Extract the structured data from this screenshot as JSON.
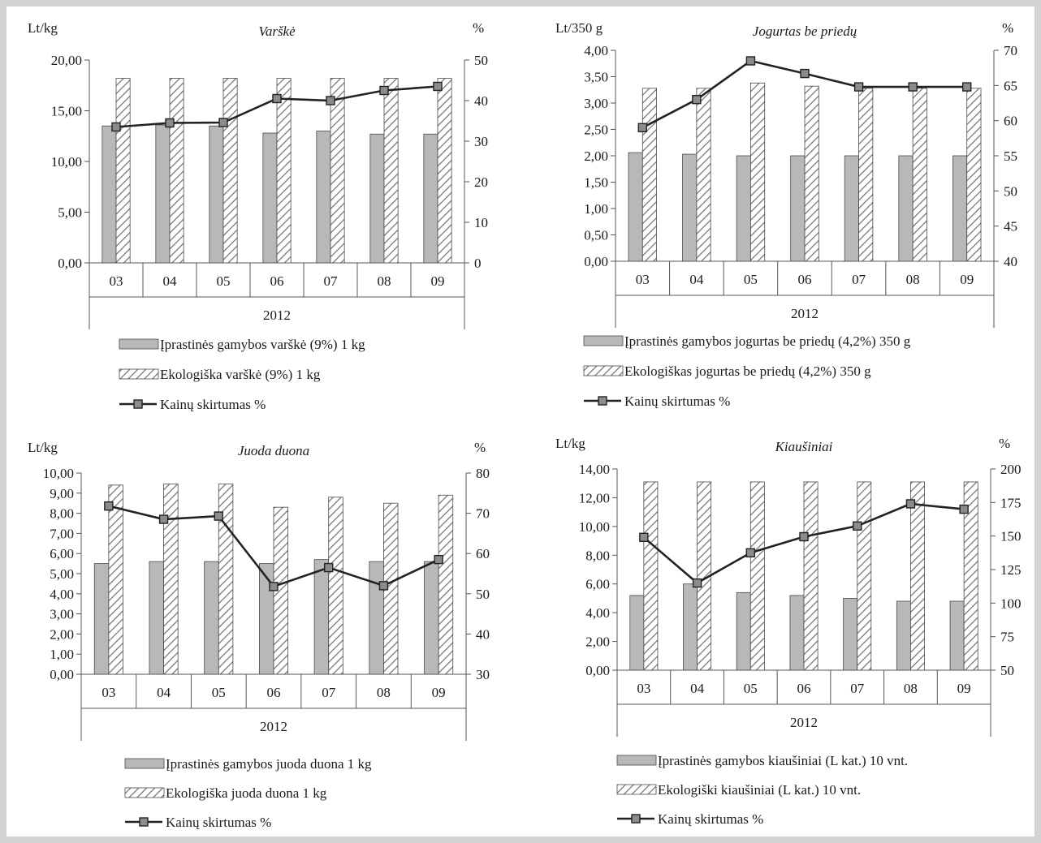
{
  "chart_data": [
    {
      "type": "bar",
      "title": "Varškė",
      "y_left_unit": "Lt/kg",
      "y_right_unit": "%",
      "ylim_left": [
        0,
        20
      ],
      "ylim_right": [
        0,
        50
      ],
      "y_left_ticks": [
        "0,00",
        "5,00",
        "10,00",
        "15,00",
        "20,00"
      ],
      "y_right_ticks": [
        "0",
        "10",
        "20",
        "30",
        "40",
        "50"
      ],
      "categories": [
        "03",
        "04",
        "05",
        "06",
        "07",
        "08",
        "09"
      ],
      "xgroup_label": "2012",
      "series": [
        {
          "name": "Įprastinės gamybos varškė (9%) 1 kg",
          "kind": "bar",
          "axis": "left",
          "style": "solid",
          "values": [
            13.5,
            13.6,
            13.5,
            12.8,
            13.0,
            12.7,
            12.7
          ]
        },
        {
          "name": "Ekologiška varškė (9%) 1 kg",
          "kind": "bar",
          "axis": "left",
          "style": "hatch",
          "values": [
            18.2,
            18.2,
            18.2,
            18.2,
            18.2,
            18.2,
            18.2
          ]
        },
        {
          "name": "Kainų skirtumas %",
          "kind": "line",
          "axis": "right",
          "values": [
            33.5,
            34.5,
            34.6,
            40.5,
            40.0,
            42.5,
            43.5
          ]
        }
      ]
    },
    {
      "type": "bar",
      "title": "Jogurtas be priedų",
      "y_left_unit": "Lt/350 g",
      "y_right_unit": "%",
      "ylim_left": [
        0,
        4
      ],
      "ylim_right": [
        40,
        70
      ],
      "y_left_ticks": [
        "0,00",
        "0,50",
        "1,00",
        "1,50",
        "2,00",
        "2,50",
        "3,00",
        "3,50",
        "4,00"
      ],
      "y_right_ticks": [
        "40",
        "45",
        "50",
        "55",
        "60",
        "65",
        "70"
      ],
      "categories": [
        "03",
        "04",
        "05",
        "06",
        "07",
        "08",
        "09"
      ],
      "xgroup_label": "2012",
      "series": [
        {
          "name": "Įprastinės gamybos jogurtas be priedų (4,2%) 350 g",
          "kind": "bar",
          "axis": "left",
          "style": "solid",
          "values": [
            2.06,
            2.03,
            2.0,
            2.0,
            2.0,
            2.0,
            2.0
          ]
        },
        {
          "name": "Ekologiškas jogurtas be priedų (4,2%) 350 g",
          "kind": "bar",
          "axis": "left",
          "style": "hatch",
          "values": [
            3.28,
            3.28,
            3.38,
            3.32,
            3.28,
            3.28,
            3.28
          ]
        },
        {
          "name": "Kainų skirtumas %",
          "kind": "line",
          "axis": "right",
          "values": [
            59.0,
            63.0,
            68.5,
            66.7,
            64.8,
            64.8,
            64.8
          ]
        }
      ]
    },
    {
      "type": "bar",
      "title": "Juoda duona",
      "y_left_unit": "Lt/kg",
      "y_right_unit": "%",
      "ylim_left": [
        0,
        10
      ],
      "ylim_right": [
        30,
        80
      ],
      "y_left_ticks": [
        "0,00",
        "1,00",
        "2,00",
        "3,00",
        "4,00",
        "5,00",
        "6,00",
        "7,00",
        "8,00",
        "9,00",
        "10,00"
      ],
      "y_right_ticks": [
        "30",
        "40",
        "50",
        "60",
        "70",
        "80"
      ],
      "categories": [
        "03",
        "04",
        "05",
        "06",
        "07",
        "08",
        "09"
      ],
      "xgroup_label": "2012",
      "series": [
        {
          "name": "Įprastinės gamybos juoda duona 1 kg",
          "kind": "bar",
          "axis": "left",
          "style": "solid",
          "values": [
            5.5,
            5.6,
            5.6,
            5.5,
            5.7,
            5.6,
            5.6
          ]
        },
        {
          "name": "Ekologiška juoda duona 1 kg",
          "kind": "bar",
          "axis": "left",
          "style": "hatch",
          "values": [
            9.4,
            9.45,
            9.45,
            8.3,
            8.8,
            8.5,
            8.9
          ]
        },
        {
          "name": "Kainų skirtumas %",
          "kind": "line",
          "axis": "right",
          "values": [
            71.8,
            68.5,
            69.3,
            51.8,
            56.5,
            52.0,
            58.5
          ]
        }
      ]
    },
    {
      "type": "bar",
      "title": "Kiaušiniai",
      "y_left_unit": "Lt/kg",
      "y_right_unit": "%",
      "ylim_left": [
        0,
        14
      ],
      "ylim_right": [
        50,
        200
      ],
      "y_left_ticks": [
        "0,00",
        "2,00",
        "4,00",
        "6,00",
        "8,00",
        "10,00",
        "12,00",
        "14,00"
      ],
      "y_right_ticks": [
        "50",
        "75",
        "100",
        "125",
        "150",
        "175",
        "200"
      ],
      "categories": [
        "03",
        "04",
        "05",
        "06",
        "07",
        "08",
        "09"
      ],
      "xgroup_label": "2012",
      "series": [
        {
          "name": "Įprastinės gamybos kiaušiniai (L kat.) 10 vnt.",
          "kind": "bar",
          "axis": "left",
          "style": "solid",
          "values": [
            5.2,
            6.0,
            5.4,
            5.2,
            5.0,
            4.8,
            4.8
          ]
        },
        {
          "name": "Ekologiški kiaušiniai (L kat.) 10 vnt.",
          "kind": "bar",
          "axis": "left",
          "style": "hatch",
          "values": [
            13.1,
            13.1,
            13.1,
            13.1,
            13.1,
            13.1,
            13.1
          ]
        },
        {
          "name": "Kainų skirtumas %",
          "kind": "line",
          "axis": "right",
          "values": [
            149.0,
            115.0,
            137.5,
            149.5,
            157.5,
            174.0,
            170.0
          ]
        }
      ]
    }
  ],
  "colors": {
    "bar_fill": "#b8b8b8",
    "bar_stroke": "#4a4a4a",
    "hatch": "#6e6e6e",
    "line": "#222222",
    "marker_fill": "#8c8c8c",
    "axis": "#555555",
    "background": "#ffffff",
    "frame": "#d4d4d4"
  }
}
